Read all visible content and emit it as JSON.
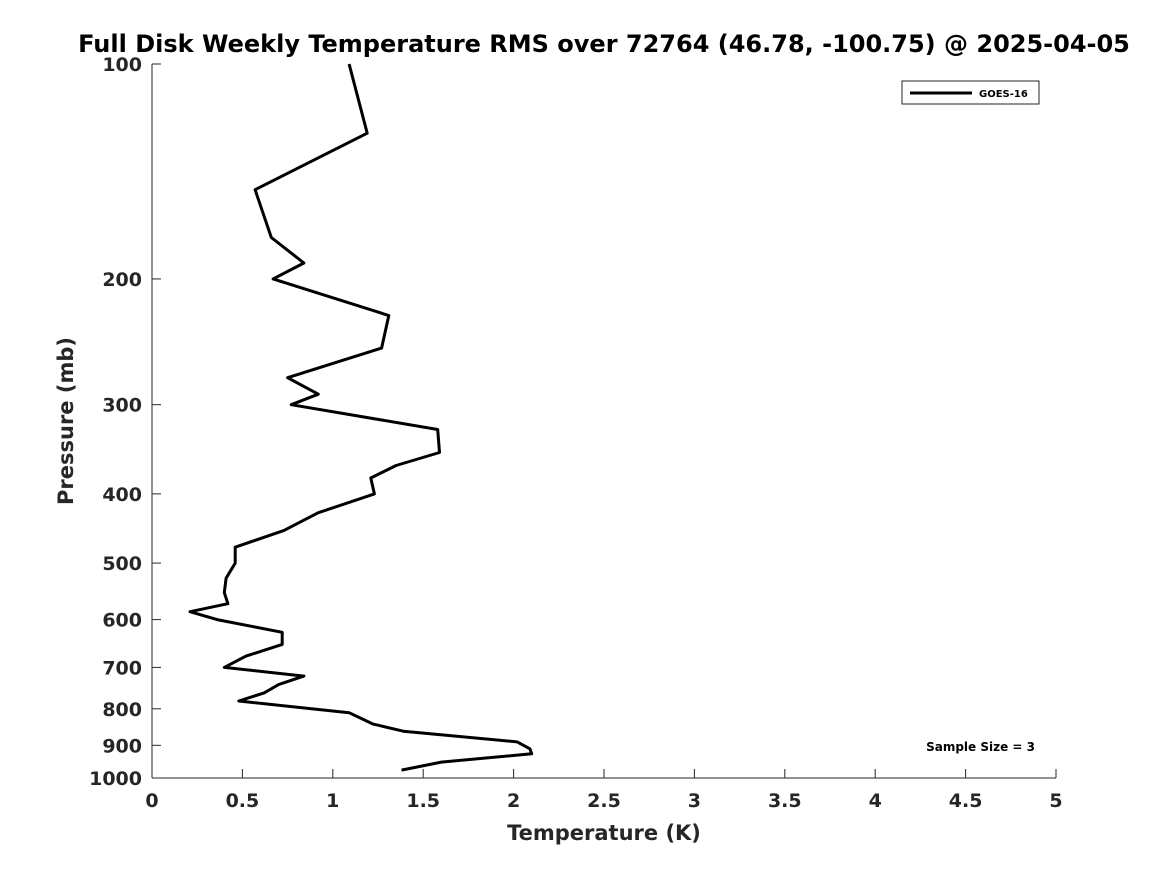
{
  "chart_data": {
    "type": "line",
    "title": "Full Disk Weekly Temperature RMS over 72764 (46.78, -100.75) @ 2025-04-05",
    "xlabel": "Temperature (K)",
    "ylabel": "Pressure (mb)",
    "xlim": [
      0,
      5
    ],
    "ylim": [
      100,
      1000
    ],
    "yscale": "log",
    "y_reversed": true,
    "xticks": [
      0,
      0.5,
      1,
      1.5,
      2,
      2.5,
      3,
      3.5,
      4,
      4.5,
      5
    ],
    "xtick_labels": [
      "0",
      "0.5",
      "1",
      "1.5",
      "2",
      "2.5",
      "3",
      "3.5",
      "4",
      "4.5",
      "5"
    ],
    "yticks": [
      100,
      200,
      300,
      400,
      500,
      600,
      700,
      800,
      900,
      1000
    ],
    "ytick_labels": [
      "100",
      "200",
      "300",
      "400",
      "500",
      "600",
      "700",
      "800",
      "900",
      "1000"
    ],
    "grid": false,
    "legend_position": "top-right",
    "series": [
      {
        "name": "GOES-16",
        "color": "#000000",
        "points": [
          [
            1.09,
            100
          ],
          [
            1.19,
            125
          ],
          [
            0.57,
            150
          ],
          [
            0.66,
            175
          ],
          [
            0.84,
            190
          ],
          [
            0.67,
            200
          ],
          [
            1.31,
            225
          ],
          [
            1.27,
            250
          ],
          [
            0.75,
            275
          ],
          [
            0.92,
            290
          ],
          [
            0.77,
            300
          ],
          [
            1.58,
            325
          ],
          [
            1.59,
            350
          ],
          [
            1.35,
            365
          ],
          [
            1.21,
            380
          ],
          [
            1.23,
            400
          ],
          [
            0.92,
            425
          ],
          [
            0.73,
            450
          ],
          [
            0.46,
            475
          ],
          [
            0.46,
            500
          ],
          [
            0.41,
            525
          ],
          [
            0.4,
            550
          ],
          [
            0.42,
            570
          ],
          [
            0.21,
            585
          ],
          [
            0.36,
            600
          ],
          [
            0.72,
            625
          ],
          [
            0.72,
            650
          ],
          [
            0.52,
            675
          ],
          [
            0.4,
            700
          ],
          [
            0.84,
            720
          ],
          [
            0.7,
            740
          ],
          [
            0.62,
            760
          ],
          [
            0.48,
            780
          ],
          [
            1.09,
            810
          ],
          [
            1.22,
            840
          ],
          [
            1.39,
            860
          ],
          [
            2.02,
            890
          ],
          [
            2.09,
            910
          ],
          [
            2.1,
            925
          ],
          [
            1.6,
            950
          ],
          [
            1.38,
            975
          ]
        ]
      }
    ],
    "annotations": [
      {
        "text": "Sample Size = 3",
        "position": "bottom-right"
      }
    ]
  }
}
